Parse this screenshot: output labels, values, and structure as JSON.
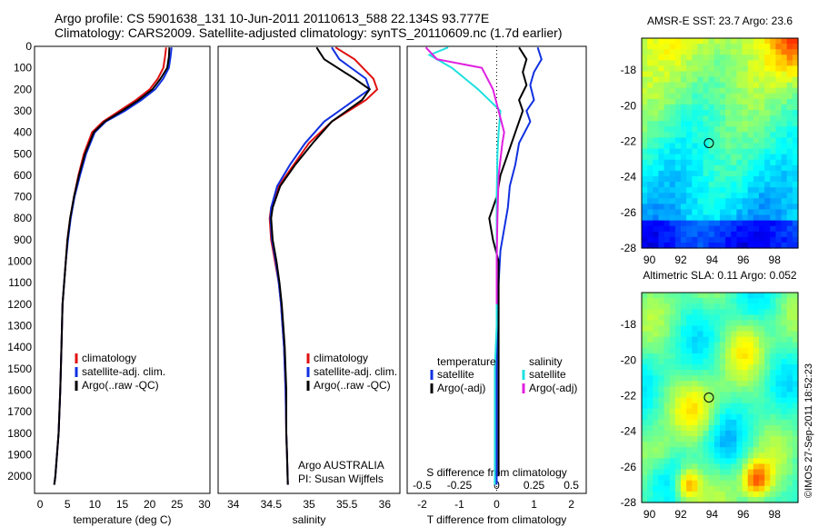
{
  "header": {
    "line1": "Argo profile: CS 5901638_131 10-Jun-2011 20110613_588 22.134S 93.777E",
    "line2": "Climatology: CARS2009. Satellite-adjusted climatology: synTS_20110609.nc (1.7d earlier)"
  },
  "stamp": "©IMOS 27-Sep-2011 18:52:23",
  "colors": {
    "climatology": "#e01010",
    "satellite": "#1030e0",
    "argo": "#000000",
    "salinity_satellite": "#20e0e0",
    "salinity_argo": "#e020e0"
  },
  "chart_data": [
    {
      "type": "line",
      "id": "temperature",
      "xlabel": "temperature (deg C)",
      "ylabel": "",
      "xlim": [
        -1,
        31
      ],
      "ylim": [
        2080,
        0
      ],
      "xticks": [
        0,
        5,
        10,
        15,
        20,
        25,
        30
      ],
      "yticks": [
        0,
        100,
        200,
        300,
        400,
        500,
        600,
        700,
        800,
        900,
        1000,
        1100,
        1200,
        1300,
        1400,
        1500,
        1600,
        1700,
        1800,
        1900,
        2000
      ],
      "legend": [
        "climatology",
        "satellite-adj. clim.",
        "Argo(..raw -QC)"
      ],
      "series": [
        {
          "name": "climatology",
          "color": "#e01010",
          "x": [
            23,
            22.8,
            22.5,
            21.5,
            20,
            17.5,
            14.5,
            11.5,
            9.5,
            8,
            7,
            6.2,
            5.5,
            5,
            4.7,
            4.4,
            4.1,
            3.9,
            3.7,
            3.4,
            3.1,
            2.8,
            2.6
          ],
          "y": [
            5,
            50,
            100,
            150,
            200,
            250,
            300,
            350,
            400,
            500,
            600,
            700,
            800,
            900,
            1000,
            1100,
            1200,
            1400,
            1600,
            1800,
            1900,
            2000,
            2040
          ]
        },
        {
          "name": "satellite-adj. clim.",
          "color": "#1030e0",
          "x": [
            24,
            23.8,
            23.5,
            22.5,
            21,
            18.5,
            15.5,
            12,
            10,
            8.4,
            7.3,
            6.3,
            5.6,
            5.1,
            4.7,
            4.4,
            4.1,
            3.9,
            3.7,
            3.4,
            3.1,
            2.8,
            2.6
          ],
          "y": [
            5,
            50,
            100,
            150,
            200,
            250,
            300,
            350,
            400,
            500,
            600,
            700,
            800,
            900,
            1000,
            1100,
            1200,
            1400,
            1600,
            1800,
            1900,
            2000,
            2040
          ]
        },
        {
          "name": "Argo(..raw -QC)",
          "color": "#000000",
          "x": [
            23.6,
            23.5,
            23.2,
            22,
            20.5,
            18,
            15,
            11.8,
            9.8,
            8.2,
            7.1,
            6.2,
            5.5,
            5,
            4.7,
            4.4,
            4.1,
            3.9,
            3.7,
            3.4,
            3.1,
            2.8,
            2.6
          ],
          "y": [
            5,
            50,
            100,
            150,
            200,
            250,
            300,
            350,
            400,
            500,
            600,
            700,
            800,
            900,
            1000,
            1100,
            1200,
            1400,
            1600,
            1800,
            1900,
            2000,
            2040
          ]
        }
      ]
    },
    {
      "type": "line",
      "id": "salinity",
      "xlabel": "salinity",
      "ylabel": "",
      "xlim": [
        33.8,
        36.2
      ],
      "ylim": [
        2080,
        0
      ],
      "xticks": [
        34,
        34.5,
        35,
        35.5,
        36
      ],
      "legend": [
        "climatology",
        "satellite-adj. clim.",
        "Argo(..raw -QC)"
      ],
      "annotation": [
        "Argo AUSTRALIA",
        "PI: Susan Wijffels"
      ],
      "series": [
        {
          "name": "climatology",
          "color": "#e01010",
          "x": [
            35.35,
            35.6,
            35.85,
            35.9,
            35.75,
            35.3,
            35,
            34.8,
            34.6,
            34.5,
            34.48,
            34.5,
            34.55,
            34.6,
            34.63,
            34.65,
            34.67,
            34.69,
            34.7,
            34.71,
            34.72
          ],
          "y": [
            5,
            60,
            150,
            200,
            250,
            350,
            450,
            550,
            650,
            750,
            800,
            900,
            1000,
            1100,
            1200,
            1300,
            1400,
            1600,
            1800,
            1900,
            2040
          ]
        },
        {
          "name": "satellite-adj. clim.",
          "color": "#1030e0",
          "x": [
            35.3,
            35.4,
            35.75,
            35.8,
            35.6,
            35.2,
            34.95,
            34.75,
            34.58,
            34.5,
            34.49,
            34.51,
            34.56,
            34.6,
            34.63,
            34.65,
            34.67,
            34.69,
            34.7,
            34.71,
            34.72
          ],
          "y": [
            5,
            60,
            150,
            200,
            250,
            350,
            450,
            550,
            650,
            750,
            800,
            900,
            1000,
            1100,
            1200,
            1300,
            1400,
            1600,
            1800,
            1900,
            2040
          ]
        },
        {
          "name": "Argo(..raw -QC)",
          "color": "#000000",
          "x": [
            35.1,
            35.2,
            35.6,
            35.8,
            35.7,
            35.3,
            35.05,
            34.82,
            34.62,
            34.52,
            34.5,
            34.52,
            34.57,
            34.61,
            34.64,
            34.66,
            34.68,
            34.7,
            34.7,
            34.71,
            34.72
          ],
          "y": [
            5,
            60,
            150,
            200,
            250,
            350,
            450,
            550,
            650,
            750,
            800,
            900,
            1000,
            1100,
            1200,
            1300,
            1400,
            1600,
            1800,
            1900,
            2040
          ]
        }
      ]
    },
    {
      "type": "line",
      "id": "difference",
      "xlabel": "T difference from climatology",
      "xlabel2": "S difference from climatology",
      "xlim": [
        -2.4,
        2.4
      ],
      "ylim": [
        2080,
        0
      ],
      "xticks": [
        -2,
        -1,
        0,
        1,
        2
      ],
      "xticks_s": [
        "-0.5",
        "-0.25",
        "0",
        "0.25",
        "0.5"
      ],
      "legend_left": {
        "title": "temperature",
        "items": [
          "satellite",
          "Argo(-adj)"
        ]
      },
      "legend_right": {
        "title": "salinity",
        "items": [
          "satellite",
          "Argo(-adj)"
        ]
      },
      "series": [
        {
          "name": "T satellite",
          "color": "#1030e0",
          "x": [
            1.1,
            1.2,
            1.0,
            0.9,
            1.0,
            0.8,
            0.9,
            0.6,
            0.5,
            0.35,
            0.3,
            0.2,
            0.1,
            0.05,
            0.02,
            0,
            0,
            0,
            0
          ],
          "y": [
            5,
            60,
            120,
            180,
            250,
            300,
            350,
            450,
            550,
            650,
            750,
            850,
            950,
            1100,
            1300,
            1500,
            1700,
            1900,
            2040
          ]
        },
        {
          "name": "T Argo(-adj)",
          "color": "#000000",
          "x": [
            0.6,
            0.8,
            0.7,
            0.8,
            0.6,
            0.7,
            0.5,
            0.3,
            0.1,
            0,
            -0.2,
            -0.1,
            0.05,
            0.05,
            0.05,
            0.05,
            0.05,
            0.05
          ],
          "y": [
            5,
            60,
            120,
            180,
            250,
            300,
            400,
            500,
            600,
            700,
            800,
            900,
            1000,
            1200,
            1400,
            1600,
            1800,
            2000
          ]
        },
        {
          "name": "S satellite",
          "color": "#20e0e0",
          "x": [
            -1.3,
            -1.8,
            -1.2,
            -0.5,
            0.1,
            0.05,
            0.02,
            0,
            0,
            0,
            0,
            -0.05,
            -0.05,
            -0.05
          ],
          "y": [
            5,
            40,
            100,
            200,
            300,
            400,
            500,
            700,
            900,
            1100,
            1300,
            1500,
            1700,
            2040
          ]
        },
        {
          "name": "S Argo(-adj)",
          "color": "#e020e0",
          "x": [
            -1.9,
            -1.6,
            -0.4,
            -0.1,
            0.05,
            0.2,
            0.15,
            0.05,
            0.02,
            0,
            0
          ],
          "y": [
            5,
            60,
            100,
            200,
            300,
            400,
            450,
            600,
            800,
            1000,
            1200
          ]
        }
      ]
    },
    {
      "type": "heatmap",
      "id": "sst",
      "title": "AMSR-E SST: 23.7 Argo: 23.6",
      "xlim": [
        89.5,
        99.5
      ],
      "ylim": [
        -28,
        -16.2
      ],
      "xticks": [
        90,
        92,
        94,
        96,
        98
      ],
      "yticks": [
        -18,
        -20,
        -22,
        -24,
        -26,
        -28
      ],
      "marker": {
        "lon": 93.8,
        "lat": -22.1
      }
    },
    {
      "type": "heatmap",
      "id": "sla",
      "title": "Altimetric SLA: 0.11 Argo: 0.052",
      "xlim": [
        89.5,
        99.5
      ],
      "ylim": [
        -28,
        -16.2
      ],
      "xticks": [
        90,
        92,
        94,
        96,
        98
      ],
      "yticks": [
        -18,
        -20,
        -22,
        -24,
        -26,
        -28
      ],
      "marker": {
        "lon": 93.8,
        "lat": -22.1
      }
    }
  ]
}
